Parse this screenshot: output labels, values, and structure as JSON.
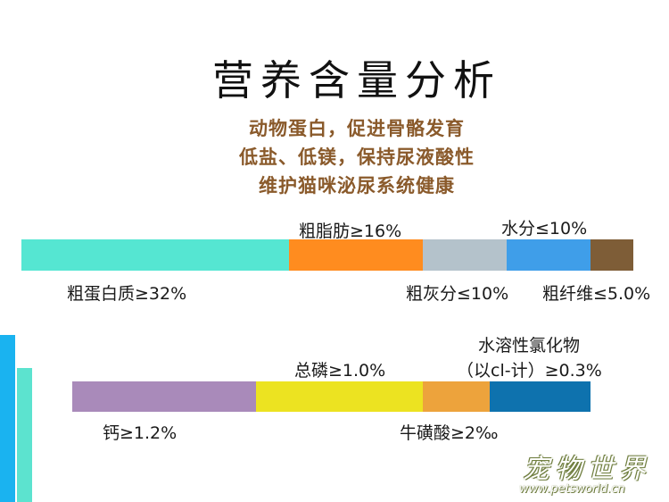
{
  "title": "营养含量分析",
  "subtitle_lines": [
    "动物蛋白，促进骨骼发育",
    "低盐、低镁，保持尿液酸性",
    "维护猫咪泌尿系统健康"
  ],
  "bar1": {
    "segments": [
      {
        "label": "粗蛋白质≥32%",
        "color": "#55e6d2"
      },
      {
        "label": "粗脂肪≥16%",
        "color": "#ff8c1f"
      },
      {
        "label": "粗灰分≤10%",
        "color": "#b4c2cb"
      },
      {
        "label": "水分≤10%",
        "color": "#3f9ee9"
      },
      {
        "label": "粗纤维≤5.0%",
        "color": "#7e5d37"
      }
    ]
  },
  "bar2": {
    "segments": [
      {
        "label": "钙≥1.2%",
        "color": "#a98aba"
      },
      {
        "label": "总磷≥1.0%",
        "color": "#ece321"
      },
      {
        "label": "牛磺酸≥2‰",
        "color": "#eda33c"
      },
      {
        "label": "水溶性氯化物",
        "label2": "（以cl-计）≥0.3%",
        "color": "#0e72ae"
      }
    ]
  },
  "watermark": {
    "text": "宠物世界",
    "url": "www.petsworld.cn"
  },
  "colors": {
    "subtitle": "#8a5a2b",
    "left_stripe_1": "#1ab3f0",
    "left_stripe_2": "#5ce3cf"
  }
}
